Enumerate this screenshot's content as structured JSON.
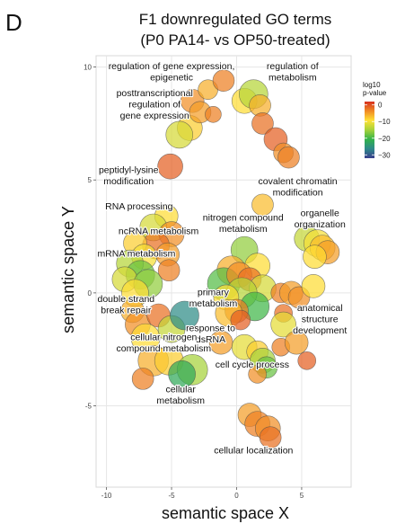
{
  "panel_label": "D",
  "chart_data": {
    "type": "scatter",
    "title": [
      "F1 downregulated GO terms",
      "(P0 PA14- vs OP50-treated)"
    ],
    "xlabel": "semantic space X",
    "ylabel": "semantic space Y",
    "xlim": [
      -10.8,
      8.8
    ],
    "ylim": [
      -8.6,
      10.5
    ],
    "xticks": [
      -10,
      -5,
      0,
      5
    ],
    "yticks": [
      -5,
      0,
      5,
      10
    ],
    "grid": true,
    "legend": {
      "title": [
        "log10",
        "p-value"
      ],
      "ticks": [
        0,
        -10,
        -20,
        -30
      ],
      "range": [
        2,
        -32
      ],
      "position": "top-right",
      "colors": [
        "#d7301f",
        "#f08a24",
        "#ffe135",
        "#a6d23a",
        "#32b34a",
        "#2e8a8a",
        "#3a3d8c"
      ]
    },
    "point_color_key": "log10 p-value",
    "points": [
      {
        "x": -3.4,
        "y": 8.5,
        "r": 13,
        "c": -4
      },
      {
        "x": -2.2,
        "y": 9.0,
        "r": 11,
        "c": -6
      },
      {
        "x": -1.0,
        "y": 9.4,
        "r": 12,
        "c": -3
      },
      {
        "x": -3.6,
        "y": 7.3,
        "r": 14,
        "c": -8
      },
      {
        "x": -2.8,
        "y": 8.0,
        "r": 12,
        "c": -5
      },
      {
        "x": -4.4,
        "y": 7.0,
        "r": 15,
        "c": -12
      },
      {
        "x": -1.8,
        "y": 7.9,
        "r": 9,
        "c": -3
      },
      {
        "x": 0.6,
        "y": 8.5,
        "r": 14,
        "c": -9
      },
      {
        "x": 1.3,
        "y": 8.8,
        "r": 16,
        "c": -14
      },
      {
        "x": 1.8,
        "y": 8.3,
        "r": 12,
        "c": -6
      },
      {
        "x": 2.0,
        "y": 7.5,
        "r": 12,
        "c": -2
      },
      {
        "x": 3.0,
        "y": 6.8,
        "r": 13,
        "c": -1
      },
      {
        "x": 3.6,
        "y": 6.2,
        "r": 11,
        "c": -4
      },
      {
        "x": 4.0,
        "y": 6.0,
        "r": 12,
        "c": -3
      },
      {
        "x": -5.1,
        "y": 5.6,
        "r": 14,
        "c": -1
      },
      {
        "x": 2.0,
        "y": 3.9,
        "r": 12,
        "c": -7
      },
      {
        "x": -5.4,
        "y": 3.4,
        "r": 13,
        "c": -9
      },
      {
        "x": -6.4,
        "y": 2.9,
        "r": 15,
        "c": -12
      },
      {
        "x": -5.0,
        "y": 2.6,
        "r": 14,
        "c": -4
      },
      {
        "x": -6.2,
        "y": 2.1,
        "r": 15,
        "c": -2
      },
      {
        "x": -5.3,
        "y": 1.7,
        "r": 13,
        "c": -5
      },
      {
        "x": -7.8,
        "y": 2.2,
        "r": 13,
        "c": -8
      },
      {
        "x": -7.1,
        "y": 1.6,
        "r": 14,
        "c": -10
      },
      {
        "x": -8.2,
        "y": 1.3,
        "r": 15,
        "c": -14
      },
      {
        "x": -7.4,
        "y": 0.8,
        "r": 16,
        "c": -18
      },
      {
        "x": -8.6,
        "y": 0.6,
        "r": 14,
        "c": -12
      },
      {
        "x": -6.8,
        "y": 0.4,
        "r": 16,
        "c": -16
      },
      {
        "x": -7.8,
        "y": 0.0,
        "r": 15,
        "c": -9
      },
      {
        "x": -8.0,
        "y": -0.8,
        "r": 13,
        "c": -6
      },
      {
        "x": -5.2,
        "y": 1.0,
        "r": 12,
        "c": -3
      },
      {
        "x": -7.6,
        "y": -1.4,
        "r": 14,
        "c": -4
      },
      {
        "x": -6.0,
        "y": -1.0,
        "r": 13,
        "c": -2
      },
      {
        "x": -7.0,
        "y": -2.0,
        "r": 16,
        "c": -9
      },
      {
        "x": -5.0,
        "y": -1.6,
        "r": 15,
        "c": -13
      },
      {
        "x": -4.0,
        "y": -1.0,
        "r": 16,
        "c": -26
      },
      {
        "x": -6.4,
        "y": -3.0,
        "r": 17,
        "c": -6
      },
      {
        "x": -5.2,
        "y": -3.0,
        "r": 16,
        "c": -8
      },
      {
        "x": -3.4,
        "y": -3.4,
        "r": 17,
        "c": -15
      },
      {
        "x": -4.2,
        "y": -3.6,
        "r": 15,
        "c": -22
      },
      {
        "x": -7.2,
        "y": -3.8,
        "r": 12,
        "c": -3
      },
      {
        "x": 0.6,
        "y": 1.9,
        "r": 15,
        "c": -16
      },
      {
        "x": 1.6,
        "y": 1.2,
        "r": 14,
        "c": -9
      },
      {
        "x": -0.4,
        "y": 1.0,
        "r": 16,
        "c": -6
      },
      {
        "x": -1.0,
        "y": 0.4,
        "r": 18,
        "c": -19
      },
      {
        "x": 0.2,
        "y": 0.8,
        "r": 14,
        "c": -4
      },
      {
        "x": 1.0,
        "y": 0.6,
        "r": 13,
        "c": -2
      },
      {
        "x": 2.0,
        "y": 0.2,
        "r": 15,
        "c": -12
      },
      {
        "x": 0.4,
        "y": 0.0,
        "r": 17,
        "c": -14
      },
      {
        "x": -0.8,
        "y": -0.2,
        "r": 14,
        "c": -9
      },
      {
        "x": 1.4,
        "y": -0.6,
        "r": 16,
        "c": -20
      },
      {
        "x": 0.0,
        "y": -0.8,
        "r": 13,
        "c": -3
      },
      {
        "x": -0.6,
        "y": -0.9,
        "r": 15,
        "c": -7
      },
      {
        "x": 0.3,
        "y": -1.2,
        "r": 11,
        "c": -1
      },
      {
        "x": -1.2,
        "y": -2.2,
        "r": 13,
        "c": -5
      },
      {
        "x": 0.6,
        "y": -2.4,
        "r": 14,
        "c": -11
      },
      {
        "x": 1.6,
        "y": -2.6,
        "r": 12,
        "c": -8
      },
      {
        "x": 2.0,
        "y": -3.0,
        "r": 14,
        "c": -15
      },
      {
        "x": 2.3,
        "y": -3.3,
        "r": 12,
        "c": -18
      },
      {
        "x": 1.6,
        "y": -3.6,
        "r": 10,
        "c": -4
      },
      {
        "x": 3.4,
        "y": 0.0,
        "r": 11,
        "c": -3
      },
      {
        "x": 4.2,
        "y": 0.0,
        "r": 13,
        "c": -5
      },
      {
        "x": 4.8,
        "y": -0.2,
        "r": 12,
        "c": -4
      },
      {
        "x": 3.6,
        "y": -0.9,
        "r": 10,
        "c": -2
      },
      {
        "x": 5.9,
        "y": 0.3,
        "r": 13,
        "c": -9
      },
      {
        "x": 3.6,
        "y": -1.4,
        "r": 14,
        "c": -11
      },
      {
        "x": 3.4,
        "y": -2.4,
        "r": 10,
        "c": -3
      },
      {
        "x": 4.6,
        "y": -2.2,
        "r": 13,
        "c": -5
      },
      {
        "x": 5.4,
        "y": -3.0,
        "r": 10,
        "c": -1
      },
      {
        "x": 5.4,
        "y": 2.4,
        "r": 14,
        "c": -13
      },
      {
        "x": 6.2,
        "y": 2.2,
        "r": 15,
        "c": -10
      },
      {
        "x": 6.6,
        "y": 2.0,
        "r": 14,
        "c": -7
      },
      {
        "x": 7.0,
        "y": 1.8,
        "r": 13,
        "c": -5
      },
      {
        "x": 6.0,
        "y": 1.6,
        "r": 13,
        "c": -9
      },
      {
        "x": 1.0,
        "y": -5.4,
        "r": 13,
        "c": -5
      },
      {
        "x": 1.6,
        "y": -5.8,
        "r": 14,
        "c": -3
      },
      {
        "x": 2.4,
        "y": -6.0,
        "r": 14,
        "c": -4
      },
      {
        "x": 2.6,
        "y": -6.4,
        "r": 12,
        "c": -2
      }
    ],
    "annotations": [
      {
        "lines": [
          "regulation of gene expression,",
          "epigenetic"
        ],
        "x": -5.0,
        "y": 9.9
      },
      {
        "lines": [
          "regulation of",
          "metabolism"
        ],
        "x": 4.3,
        "y": 9.9
      },
      {
        "lines": [
          "posttranscriptional",
          "regulation of",
          "gene expression"
        ],
        "x": -6.3,
        "y": 8.7
      },
      {
        "lines": [
          "peptidyl-lysine",
          "modification"
        ],
        "x": -8.3,
        "y": 5.3
      },
      {
        "lines": [
          "RNA processing"
        ],
        "x": -7.5,
        "y": 3.7
      },
      {
        "lines": [
          "covalent chromatin",
          "modification"
        ],
        "x": 4.7,
        "y": 4.8
      },
      {
        "lines": [
          "nitrogen compound",
          "metabolism"
        ],
        "x": 0.5,
        "y": 3.2
      },
      {
        "lines": [
          "organelle",
          "organization"
        ],
        "x": 6.4,
        "y": 3.4
      },
      {
        "lines": [
          "ncRNA metabolism"
        ],
        "x": -6.0,
        "y": 2.6
      },
      {
        "lines": [
          "mRNA metabolism"
        ],
        "x": -7.7,
        "y": 1.6
      },
      {
        "lines": [
          "primary",
          "metabolism"
        ],
        "x": -1.8,
        "y": -0.1
      },
      {
        "lines": [
          "double strand",
          "break repair"
        ],
        "x": -8.5,
        "y": -0.4
      },
      {
        "lines": [
          "anatomical",
          "structure",
          "development"
        ],
        "x": 6.4,
        "y": -0.8
      },
      {
        "lines": [
          "response to",
          "dsRNA"
        ],
        "x": -2.0,
        "y": -1.7
      },
      {
        "lines": [
          "cellular nitrogen",
          "compound metabolism"
        ],
        "x": -5.6,
        "y": -2.1
      },
      {
        "lines": [
          "cell cycle process"
        ],
        "x": 1.2,
        "y": -3.3
      },
      {
        "lines": [
          "cellular",
          "metabolism"
        ],
        "x": -4.3,
        "y": -4.4
      },
      {
        "lines": [
          "cellular localization"
        ],
        "x": 1.3,
        "y": -7.1
      }
    ]
  }
}
